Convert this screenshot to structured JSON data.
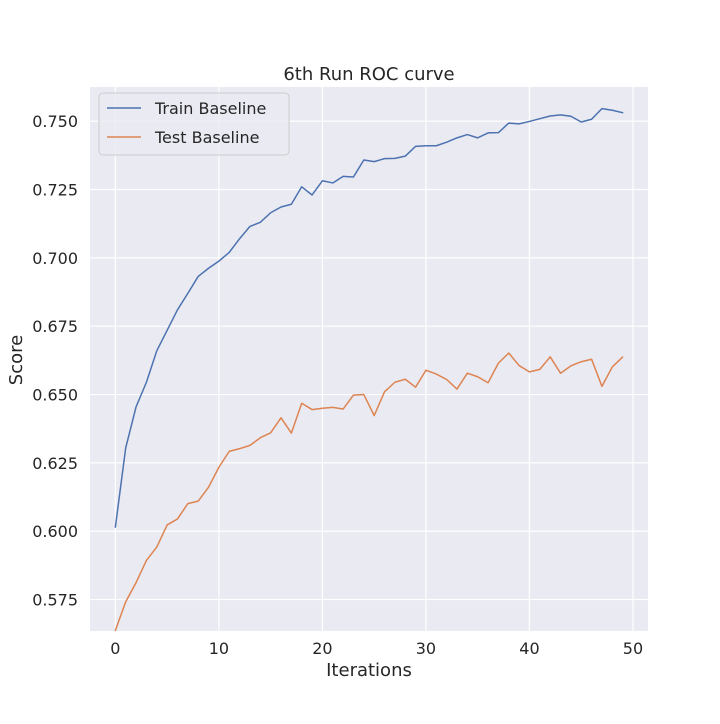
{
  "chart_data": {
    "type": "line",
    "title": "6th Run ROC curve",
    "xlabel": "Iterations",
    "ylabel": "Score",
    "xlim": [
      -2.45,
      51.45
    ],
    "ylim": [
      0.5635,
      0.7625
    ],
    "xticks": [
      0,
      10,
      20,
      30,
      40,
      50
    ],
    "yticks": [
      0.575,
      0.6,
      0.625,
      0.65,
      0.675,
      0.7,
      0.725,
      0.75
    ],
    "ytick_labels": [
      "0.575",
      "0.600",
      "0.625",
      "0.650",
      "0.675",
      "0.700",
      "0.725",
      "0.750"
    ],
    "grid": true,
    "legend_position": "top-left",
    "background": "#eaeaf2",
    "x": [
      0,
      1,
      2,
      3,
      4,
      5,
      6,
      7,
      8,
      9,
      10,
      11,
      12,
      13,
      14,
      15,
      16,
      17,
      18,
      19,
      20,
      21,
      22,
      23,
      24,
      25,
      26,
      27,
      28,
      29,
      30,
      31,
      32,
      33,
      34,
      35,
      36,
      37,
      38,
      39,
      40,
      41,
      42,
      43,
      44,
      45,
      46,
      47,
      48,
      49
    ],
    "series": [
      {
        "name": "Train Baseline",
        "color": "#4c72b0",
        "values": [
          0.6015,
          0.6305,
          0.6455,
          0.6545,
          0.666,
          0.6735,
          0.681,
          0.687,
          0.6932,
          0.6962,
          0.6988,
          0.702,
          0.707,
          0.7115,
          0.713,
          0.7165,
          0.7186,
          0.7196,
          0.726,
          0.723,
          0.7282,
          0.7274,
          0.7298,
          0.7296,
          0.7358,
          0.7352,
          0.7363,
          0.7364,
          0.7372,
          0.7408,
          0.741,
          0.741,
          0.7423,
          0.7439,
          0.7451,
          0.7439,
          0.7457,
          0.7458,
          0.7493,
          0.749,
          0.7499,
          0.7509,
          0.7519,
          0.7523,
          0.7518,
          0.7497,
          0.7507,
          0.7546,
          0.754,
          0.7531
        ]
      },
      {
        "name": "Test Baseline",
        "color": "#dd8452",
        "values": [
          0.5637,
          0.5742,
          0.5812,
          0.5893,
          0.5942,
          0.6023,
          0.6045,
          0.6101,
          0.611,
          0.6161,
          0.6234,
          0.6292,
          0.6302,
          0.6314,
          0.6342,
          0.636,
          0.6415,
          0.6359,
          0.6468,
          0.6445,
          0.645,
          0.6453,
          0.6447,
          0.6498,
          0.65,
          0.6423,
          0.651,
          0.6545,
          0.6556,
          0.6527,
          0.6589,
          0.6575,
          0.6555,
          0.652,
          0.6578,
          0.6565,
          0.6543,
          0.6615,
          0.6652,
          0.6606,
          0.6583,
          0.6592,
          0.6638,
          0.6578,
          0.6605,
          0.662,
          0.6629,
          0.653,
          0.6601,
          0.6637
        ]
      }
    ]
  }
}
